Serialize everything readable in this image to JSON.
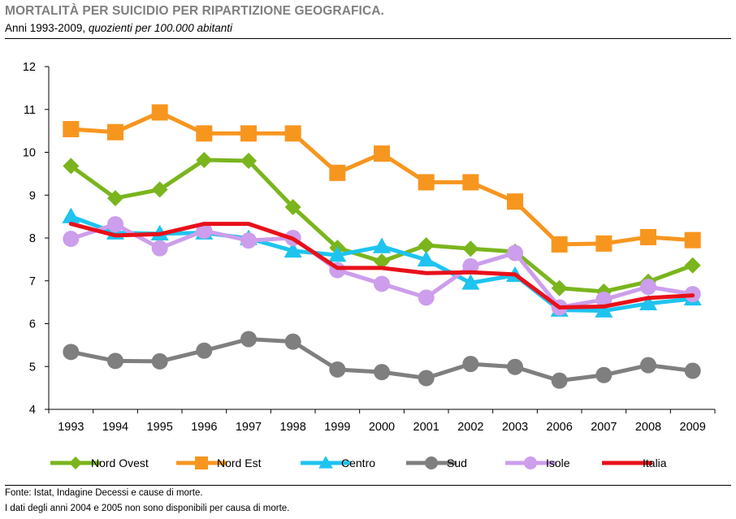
{
  "header": {
    "title": "MORTALITÀ PER SUICIDIO PER RIPARTIZIONE GEOGRAFICA.",
    "subtitle_plain": "Anni 1993-2009, ",
    "subtitle_italic": "quozienti per 100.000 abitanti"
  },
  "footer": {
    "source": "Fonte: Istat, Indagine Decessi e cause di morte.",
    "note": "I dati degli anni 2004 e 2005 non sono disponibili per causa di morte."
  },
  "chart_data": {
    "type": "line",
    "title": "MORTALITÀ PER SUICIDIO PER RIPARTIZIONE GEOGRAFICA.",
    "subtitle": "Anni 1993-2009, quozienti per 100.000 abitanti",
    "xlabel": "",
    "ylabel": "",
    "categories": [
      "1993",
      "1994",
      "1995",
      "1996",
      "1997",
      "1998",
      "1999",
      "2000",
      "2001",
      "2002",
      "2003",
      "2006",
      "2007",
      "2008",
      "2009"
    ],
    "ylim": [
      4,
      12
    ],
    "yticks": [
      4,
      5,
      6,
      7,
      8,
      9,
      10,
      11,
      12
    ],
    "grid": false,
    "legend_position": "bottom",
    "series": [
      {
        "name": "Nord Ovest",
        "color": "#7ab51d",
        "marker": "diamond",
        "values": [
          9.68,
          8.93,
          9.13,
          9.82,
          9.8,
          8.72,
          7.77,
          7.45,
          7.83,
          7.75,
          7.68,
          6.83,
          6.75,
          6.98,
          7.36
        ]
      },
      {
        "name": "Nord Est",
        "color": "#f7961f",
        "marker": "square",
        "values": [
          10.54,
          10.47,
          10.93,
          10.44,
          10.44,
          10.44,
          9.52,
          9.97,
          9.3,
          9.3,
          8.85,
          7.85,
          7.87,
          8.02,
          7.95
        ]
      },
      {
        "name": "Centro",
        "color": "#1ec4ef",
        "marker": "triangle",
        "values": [
          8.5,
          8.12,
          8.1,
          8.12,
          7.99,
          7.7,
          7.6,
          7.8,
          7.49,
          6.95,
          7.13,
          6.32,
          6.3,
          6.47,
          6.58
        ]
      },
      {
        "name": "Sud",
        "color": "#7f7f7f",
        "marker": "circle",
        "values": [
          5.34,
          5.13,
          5.12,
          5.37,
          5.64,
          5.58,
          4.93,
          4.87,
          4.73,
          5.06,
          4.99,
          4.67,
          4.8,
          5.03,
          4.9
        ]
      },
      {
        "name": "Isole",
        "color": "#cc9eec",
        "marker": "circle",
        "values": [
          7.98,
          8.32,
          7.76,
          8.17,
          7.94,
          8.0,
          7.25,
          6.93,
          6.61,
          7.34,
          7.65,
          6.38,
          6.56,
          6.86,
          6.69
        ]
      },
      {
        "name": "Italia",
        "color": "#e8101a",
        "marker": "none",
        "values": [
          8.33,
          8.06,
          8.09,
          8.33,
          8.33,
          7.98,
          7.3,
          7.3,
          7.18,
          7.2,
          7.15,
          6.38,
          6.4,
          6.6,
          6.66
        ]
      }
    ]
  }
}
